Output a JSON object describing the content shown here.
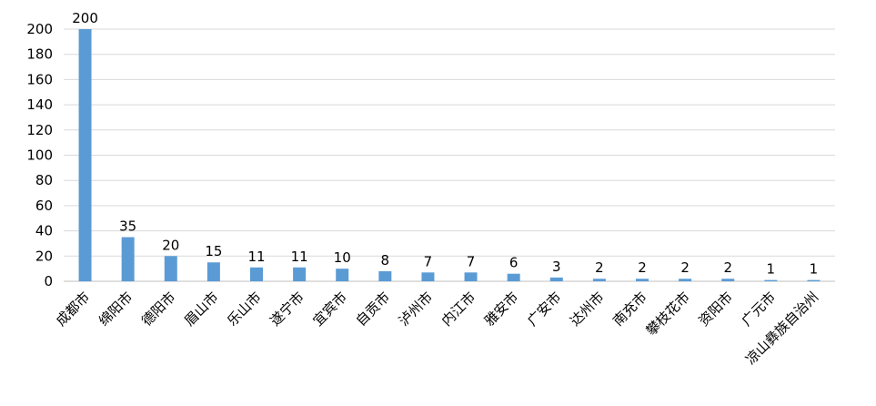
{
  "chart_data": {
    "type": "bar",
    "title": "",
    "xlabel": "",
    "ylabel": "",
    "categories": [
      "成都市",
      "绵阳市",
      "德阳市",
      "眉山市",
      "乐山市",
      "遂宁市",
      "宜宾市",
      "自贡市",
      "泸州市",
      "内江市",
      "雅安市",
      "广安市",
      "达州市",
      "南充市",
      "攀枝花市",
      "资阳市",
      "广元市",
      "凉山彝族自治州"
    ],
    "values": [
      200,
      35,
      20,
      15,
      11,
      11,
      10,
      8,
      7,
      7,
      6,
      3,
      2,
      2,
      2,
      2,
      1,
      1
    ],
    "ylim": [
      0,
      200
    ],
    "yticks": [
      0,
      20,
      40,
      60,
      80,
      100,
      120,
      140,
      160,
      180,
      200
    ],
    "grid": true,
    "legend": "none",
    "data_labels": true,
    "bar_color": "#5B9BD5",
    "grid_color": "#D9D9D9"
  }
}
